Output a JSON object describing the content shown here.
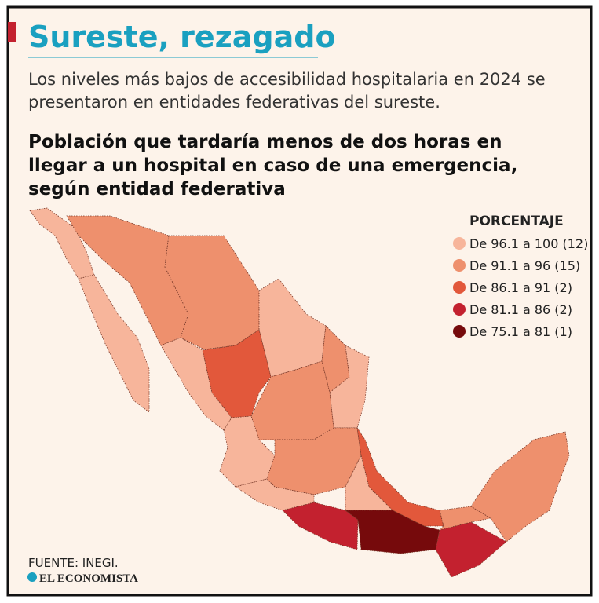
{
  "header": {
    "title": "Sureste, rezagado",
    "subtitle_lines": [
      "Los niveles más bajos de accesibilidad hospitalaria en 2024 se",
      "presentaron en entidades federativas del sureste."
    ]
  },
  "map": {
    "title_lines": [
      "Población que tardaría menos de dos horas en",
      "llegar a un hospital en caso de una emergencia,",
      "según entidad federativa"
    ],
    "legend": {
      "title": "PORCENTAJE",
      "items": [
        {
          "label": "De 96.1 a 100 (12)",
          "color": "#f7b59b"
        },
        {
          "label": "De 91.1 a 96 (15)",
          "color": "#ee906d"
        },
        {
          "label": "De 86.1 a 91 (2)",
          "color": "#e2583b"
        },
        {
          "label": "De 81.1 a 86 (2)",
          "color": "#c3212f"
        },
        {
          "label": "De 75.1 a 81 (1)",
          "color": "#760a0c"
        }
      ]
    }
  },
  "footer": {
    "source": "FUENTE: INEGI.",
    "brand": "EL ECONOMISTA"
  }
}
